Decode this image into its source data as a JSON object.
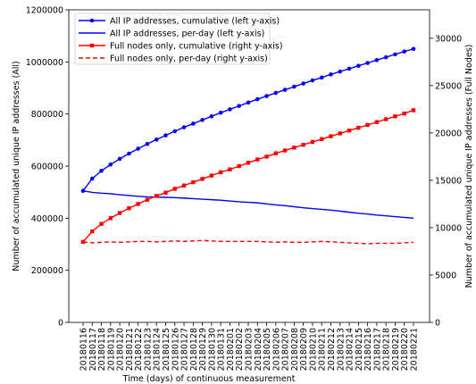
{
  "chart_data": {
    "type": "line",
    "xlabel": "Time (days) of continuous measurement",
    "ylabel_left": "Number of accumulated unique IP addresses (All)",
    "ylabel_right": "Number of accumulated unique IP addresses (Full Nodes)",
    "ylim_left": [
      0,
      1200000
    ],
    "ylim_right": [
      0,
      33000
    ],
    "yticks_left": [
      "0",
      "200000",
      "400000",
      "600000",
      "800000",
      "1000000",
      "1200000"
    ],
    "yticks_right": [
      "0",
      "5000",
      "10000",
      "15000",
      "20000",
      "25000",
      "30000"
    ],
    "grid": false,
    "legend_position": "top-left",
    "categories": [
      "20180116",
      "20180117",
      "20180118",
      "20180119",
      "20180120",
      "20180121",
      "20180122",
      "20180123",
      "20180124",
      "20180125",
      "20180126",
      "20180127",
      "20180128",
      "20180129",
      "20180130",
      "20180131",
      "20180201",
      "20180202",
      "20180203",
      "20180204",
      "20180205",
      "20180206",
      "20180207",
      "20180208",
      "20180209",
      "20180210",
      "20180211",
      "20180212",
      "20180213",
      "20180214",
      "20180215",
      "20180216",
      "20180217",
      "20180218",
      "20180219",
      "20180220",
      "20180221"
    ],
    "series": [
      {
        "name": "All IP addresses, cumulative (left y-axis)",
        "axis": "left",
        "color": "#0000ff",
        "style": "solid",
        "marker": "circle",
        "values": [
          505000,
          552000,
          582000,
          606000,
          628000,
          648000,
          667000,
          685000,
          702000,
          718000,
          734000,
          749000,
          763000,
          777000,
          791000,
          805000,
          818000,
          831000,
          844000,
          857000,
          869000,
          881000,
          893000,
          905000,
          917000,
          929000,
          940000,
          952000,
          963000,
          974000,
          985000,
          996000,
          1007000,
          1018000,
          1029000,
          1040000,
          1050000
        ]
      },
      {
        "name": "All IP addresses, per-day (left y-axis)",
        "axis": "left",
        "color": "#0000ff",
        "style": "solid",
        "marker": "none",
        "values": [
          505000,
          499000,
          496000,
          494000,
          490000,
          487000,
          484000,
          482000,
          481000,
          480000,
          479000,
          477000,
          475000,
          473000,
          471000,
          469000,
          466000,
          463000,
          461000,
          459000,
          455000,
          451000,
          448000,
          444000,
          440000,
          437000,
          434000,
          431000,
          427000,
          423000,
          419000,
          416000,
          412000,
          409000,
          406000,
          403000,
          400000
        ]
      },
      {
        "name": "Full nodes only, cumulative (right y-axis)",
        "axis": "right",
        "color": "#ff0000",
        "style": "solid",
        "marker": "square",
        "values": [
          8500,
          9600,
          10400,
          11000,
          11550,
          12050,
          12500,
          12950,
          13350,
          13700,
          14100,
          14450,
          14800,
          15150,
          15500,
          15850,
          16150,
          16500,
          16850,
          17200,
          17500,
          17850,
          18150,
          18450,
          18750,
          19050,
          19350,
          19650,
          19950,
          20250,
          20550,
          20850,
          21150,
          21450,
          21750,
          22050,
          22400
        ]
      },
      {
        "name": "Full nodes only, per-day (right y-axis)",
        "axis": "right",
        "color": "#ff0000",
        "style": "dashed",
        "marker": "none",
        "values": [
          8500,
          8400,
          8450,
          8500,
          8450,
          8500,
          8550,
          8550,
          8500,
          8550,
          8600,
          8550,
          8600,
          8650,
          8600,
          8550,
          8550,
          8550,
          8550,
          8550,
          8500,
          8450,
          8500,
          8450,
          8450,
          8500,
          8550,
          8500,
          8450,
          8400,
          8350,
          8300,
          8350,
          8350,
          8350,
          8400,
          8450
        ]
      }
    ]
  }
}
